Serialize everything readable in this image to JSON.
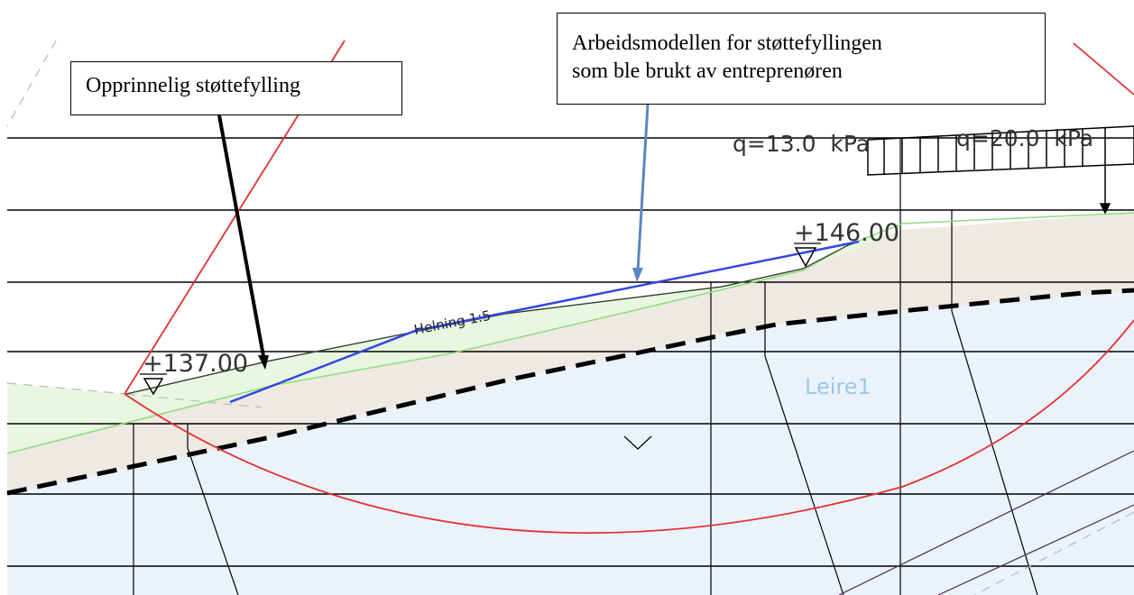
{
  "callouts": {
    "original": "Opprinnelig støttefylling",
    "work_model_line1": "Arbeidsmodellen for støttefyllingen",
    "work_model_line2": "som ble brukt av entreprenøren"
  },
  "labels": {
    "elev_low": "+137.00",
    "elev_high": "+146.00",
    "slope": "Helning 1:5",
    "soil": "Leire1",
    "load_1": "q=13.0  kPa",
    "load_2": "q=20.0  kPa"
  },
  "colors": {
    "clay_fill": "#eaf3fc",
    "fill_layer": "#efe9e3",
    "green_layer": "#e8f7e0",
    "slip_circle": "#e53030",
    "work_model_line": "#3347e0",
    "soil_label": "#9cc6ea",
    "arrow_blue": "#5b87c0"
  }
}
